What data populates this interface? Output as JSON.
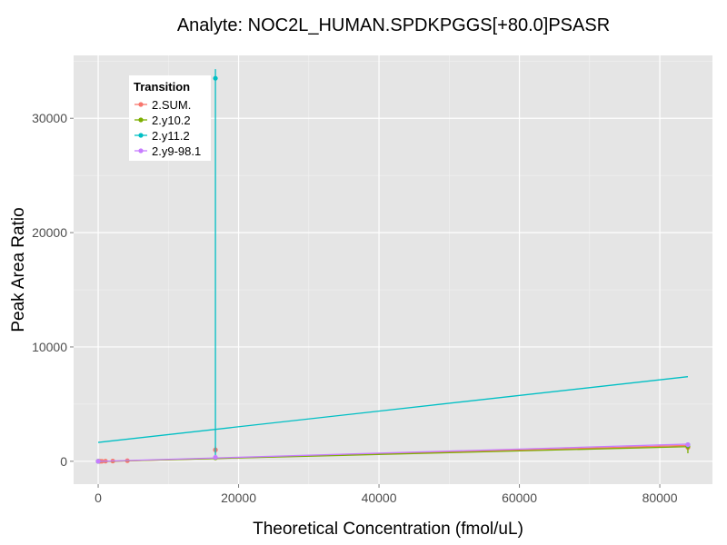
{
  "chart_data": {
    "type": "scatter",
    "title": "Analyte: NOC2L_HUMAN.SPDKPGGS[+80.0]PSASR",
    "xlabel": "Theoretical Concentration (fmol/uL)",
    "ylabel": "Peak Area Ratio",
    "xlim": [
      -3500,
      87500
    ],
    "ylim": [
      -2000,
      35500
    ],
    "x_ticks": [
      0,
      20000,
      40000,
      60000,
      80000
    ],
    "x_tick_labels": [
      "0",
      "20000",
      "40000",
      "60000",
      "80000"
    ],
    "y_ticks": [
      0,
      10000,
      20000,
      30000
    ],
    "y_tick_labels": [
      "0",
      "10000",
      "20000",
      "30000"
    ],
    "grid": true,
    "legend": {
      "title": "Transition",
      "position": "top-left"
    },
    "series": [
      {
        "name": "2.SUM.",
        "color": "#F8766D",
        "points": [
          {
            "x": 0,
            "y": 0
          },
          {
            "x": 130,
            "y": 0
          },
          {
            "x": 260,
            "y": 0
          },
          {
            "x": 520,
            "y": 0
          },
          {
            "x": 1040,
            "y": 10
          },
          {
            "x": 2080,
            "y": 20
          },
          {
            "x": 4160,
            "y": 50
          },
          {
            "x": 16700,
            "y": 1000
          },
          {
            "x": 84000,
            "y": 1200
          }
        ],
        "error_bars": [
          {
            "x": 16700,
            "low": 700,
            "high": 1300
          },
          {
            "x": 84000,
            "low": 1000,
            "high": 1500
          }
        ],
        "fit": {
          "x": [
            0,
            84000
          ],
          "y": [
            -30,
            1380
          ]
        }
      },
      {
        "name": "2.y10.2",
        "color": "#7CAE00",
        "points": [
          {
            "x": 0,
            "y": 0
          },
          {
            "x": 16700,
            "y": 300
          },
          {
            "x": 84000,
            "y": 1300
          }
        ],
        "error_bars": [
          {
            "x": 84000,
            "low": 700,
            "high": 1450
          }
        ],
        "fit": {
          "x": [
            0,
            84000
          ],
          "y": [
            -20,
            1280
          ]
        }
      },
      {
        "name": "2.y11.2",
        "color": "#00BFC4",
        "points": [
          {
            "x": 0,
            "y": 0
          },
          {
            "x": 16700,
            "y": 33500
          },
          {
            "x": 84000,
            "y": 1450
          }
        ],
        "error_bars": [
          {
            "x": 16700,
            "low": 200,
            "high": 34300
          },
          {
            "x": 84000,
            "low": 1200,
            "high": 1600
          }
        ],
        "fit": {
          "x": [
            0,
            84000
          ],
          "y": [
            1650,
            7400
          ]
        }
      },
      {
        "name": "2.y9-98.1",
        "color": "#C77CFF",
        "points": [
          {
            "x": 0,
            "y": 0
          },
          {
            "x": 16700,
            "y": 350
          },
          {
            "x": 84000,
            "y": 1450
          }
        ],
        "error_bars": [],
        "fit": {
          "x": [
            0,
            84000
          ],
          "y": [
            -10,
            1500
          ]
        }
      }
    ]
  }
}
